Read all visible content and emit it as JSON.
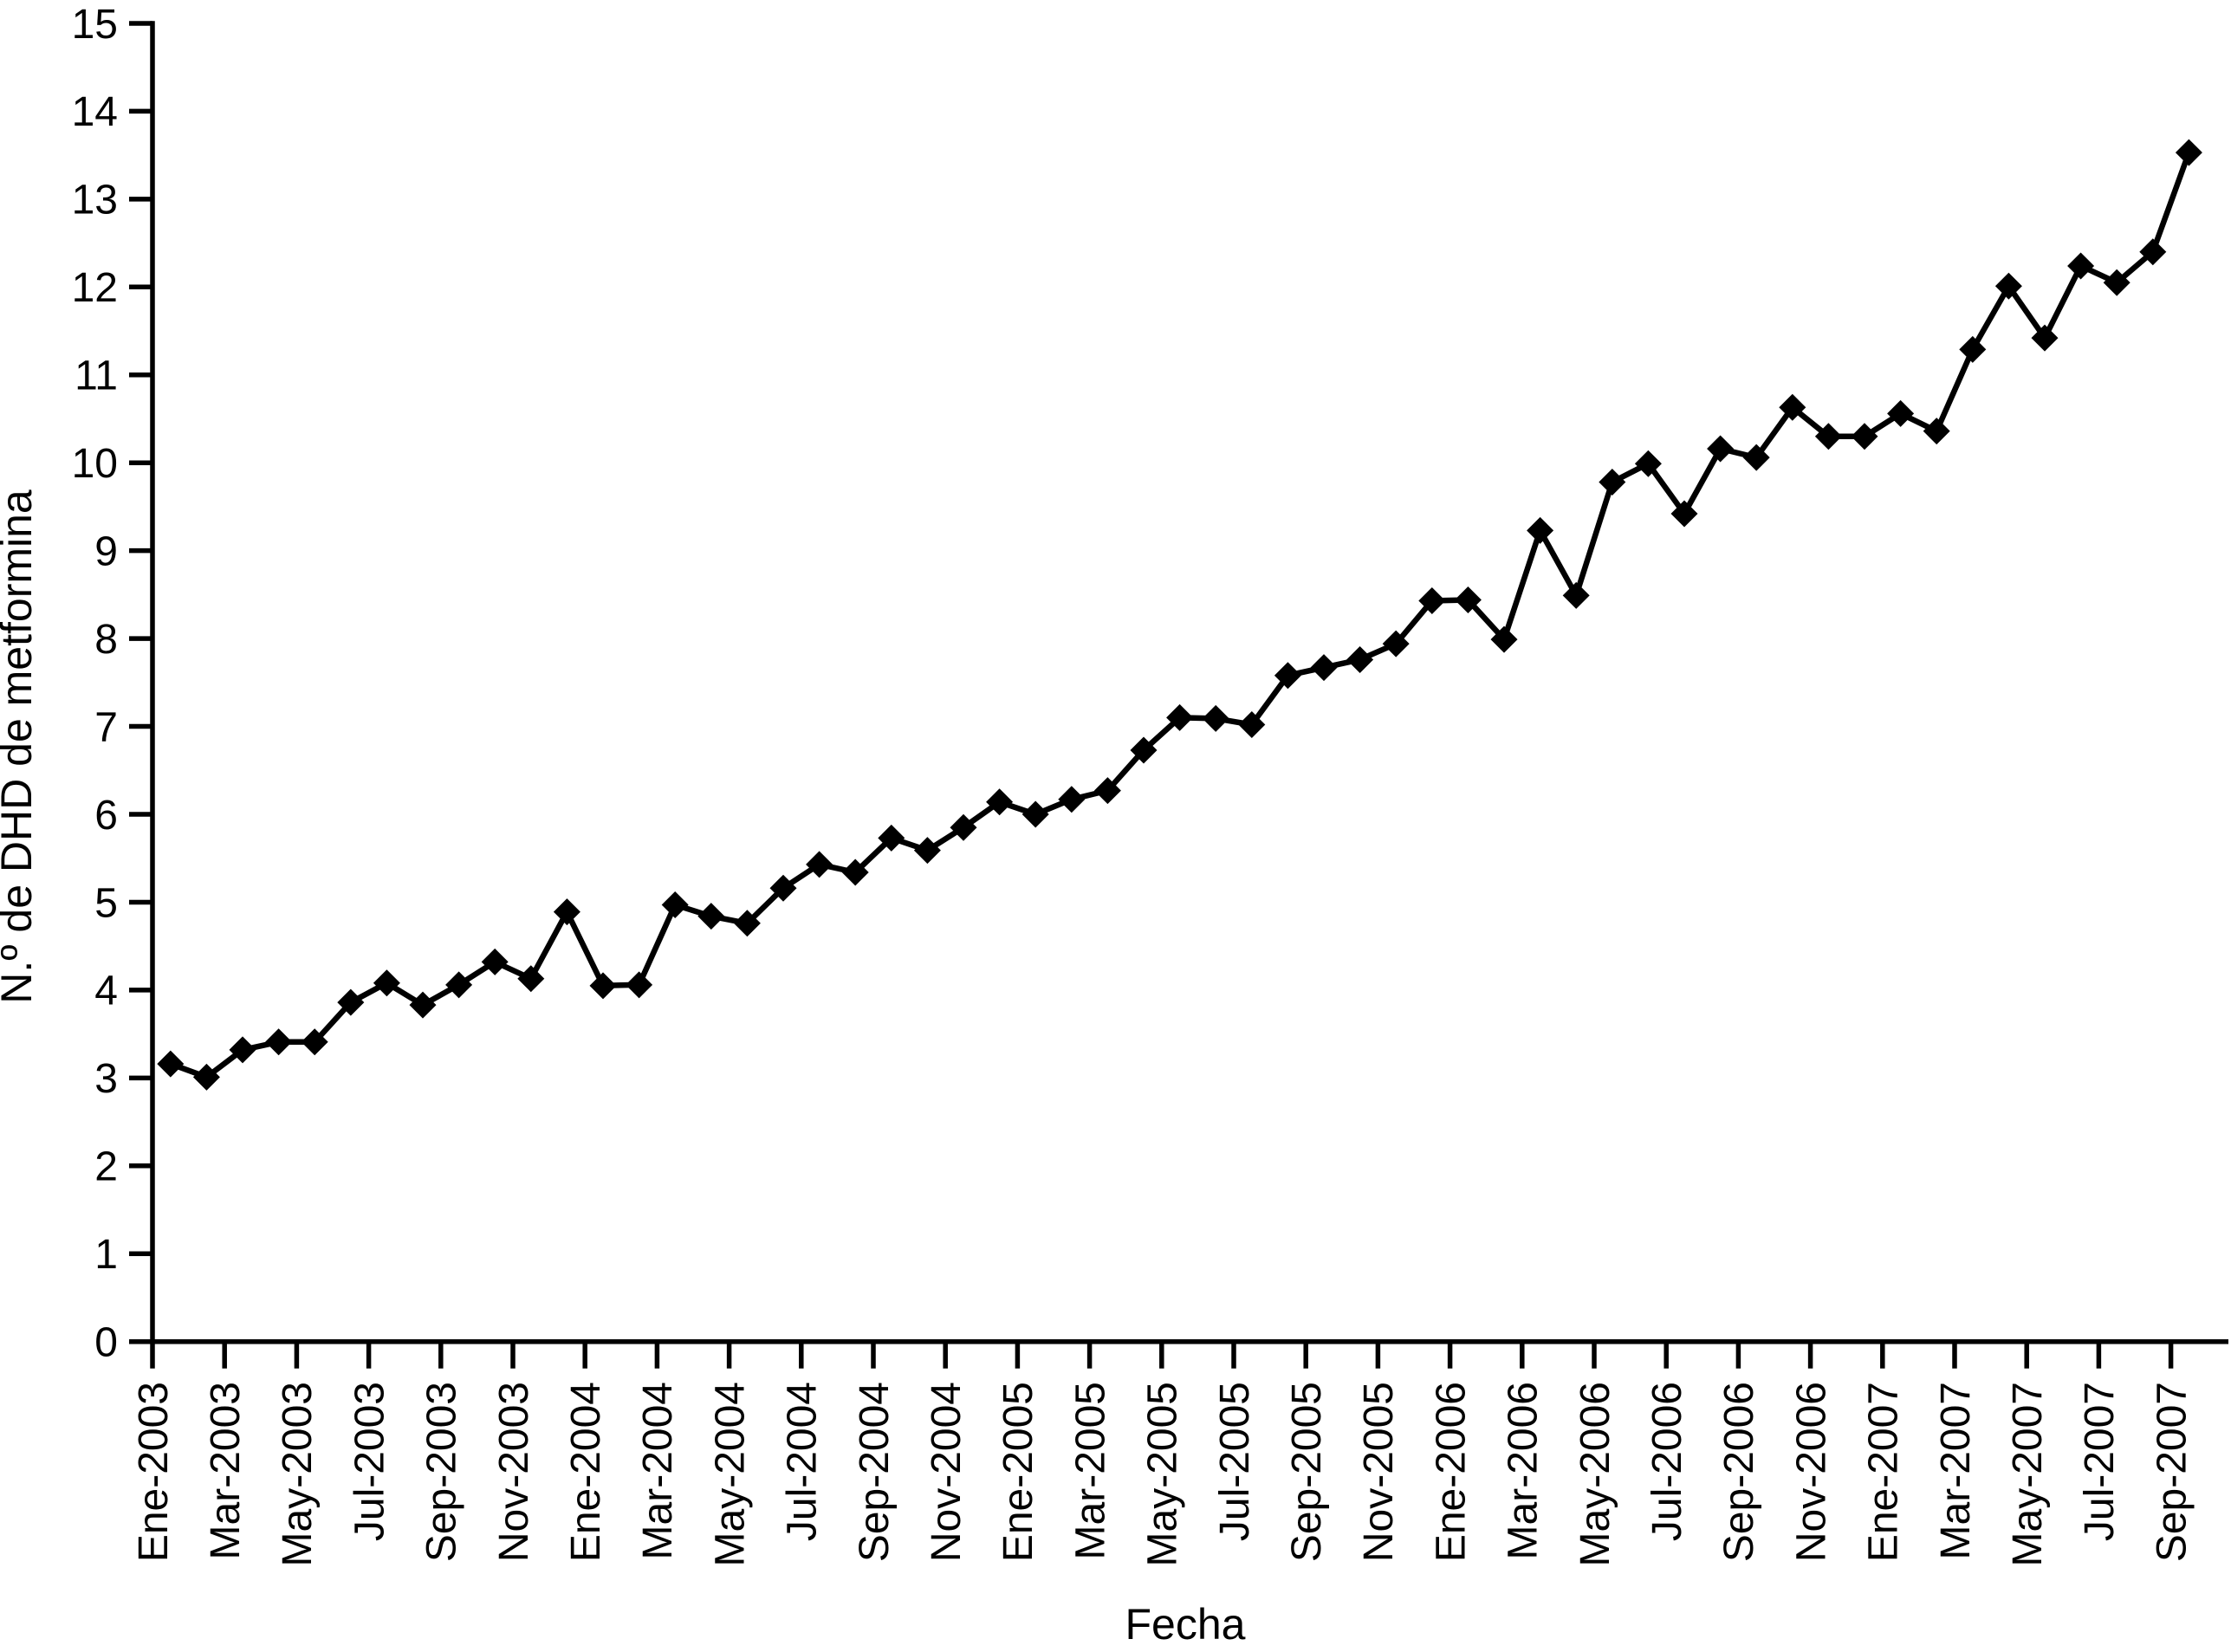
{
  "chart_data": {
    "type": "line",
    "title": "",
    "xlabel": "Fecha",
    "ylabel": "N.º de DHD de metformina",
    "legend": "none",
    "grid": "off",
    "marker": "diamond",
    "line_color": "#000000",
    "marker_color": "#000000",
    "axis_color": "#000000",
    "background": "#ffffff",
    "ylim": [
      0,
      15
    ],
    "y_tick_labels": [
      "0",
      "1",
      "2",
      "3",
      "4",
      "5",
      "6",
      "7",
      "8",
      "9",
      "10",
      "11",
      "12",
      "13",
      "14",
      "15"
    ],
    "x_tick_labels": [
      "Ene-2003",
      "Mar-2003",
      "May-2003",
      "Jul-2003",
      "Sep-2003",
      "Nov-2003",
      "Ene-2004",
      "Mar-2004",
      "May-2004",
      "Jul-2004",
      "Sep-2004",
      "Nov-2004",
      "Ene-2005",
      "Mar-2005",
      "May-2005",
      "Jul-2005",
      "Sep-2005",
      "Nov-2005",
      "Ene-2006",
      "Mar-2006",
      "May-2006",
      "Jul-2006",
      "Sep-2006",
      "Nov-2006",
      "Ene-2007",
      "Mar-2007",
      "May-2007",
      "Jul-2007",
      "Sep-2007"
    ],
    "categories": [
      "Ene-2003",
      "Feb-2003",
      "Mar-2003",
      "Abr-2003",
      "May-2003",
      "Jun-2003",
      "Jul-2003",
      "Ago-2003",
      "Sep-2003",
      "Oct-2003",
      "Nov-2003",
      "Dic-2003",
      "Ene-2004",
      "Feb-2004",
      "Mar-2004",
      "Abr-2004",
      "May-2004",
      "Jun-2004",
      "Jul-2004",
      "Ago-2004",
      "Sep-2004",
      "Oct-2004",
      "Nov-2004",
      "Dic-2004",
      "Ene-2005",
      "Feb-2005",
      "Mar-2005",
      "Abr-2005",
      "May-2005",
      "Jun-2005",
      "Jul-2005",
      "Ago-2005",
      "Sep-2005",
      "Oct-2005",
      "Nov-2005",
      "Dic-2005",
      "Ene-2006",
      "Feb-2006",
      "Mar-2006",
      "Abr-2006",
      "May-2006",
      "Jun-2006",
      "Jul-2006",
      "Ago-2006",
      "Sep-2006",
      "Oct-2006",
      "Nov-2006",
      "Dic-2006",
      "Ene-2007",
      "Feb-2007",
      "Mar-2007",
      "Abr-2007",
      "May-2007",
      "Jun-2007",
      "Jul-2007",
      "Ago-2007",
      "Sep-2007"
    ],
    "values": [
      3.16,
      3.01,
      3.32,
      3.41,
      3.41,
      3.86,
      4.08,
      3.83,
      4.06,
      4.32,
      4.13,
      4.89,
      4.05,
      4.06,
      4.97,
      4.84,
      4.76,
      5.16,
      5.43,
      5.34,
      5.73,
      5.59,
      5.85,
      6.14,
      6.0,
      6.17,
      6.27,
      6.73,
      7.1,
      7.09,
      7.02,
      7.58,
      7.67,
      7.76,
      7.94,
      8.43,
      8.44,
      7.99,
      9.23,
      8.49,
      9.78,
      9.99,
      9.42,
      10.16,
      10.06,
      10.63,
      10.3,
      10.3,
      10.56,
      10.36,
      11.29,
      12.01,
      11.42,
      12.24,
      12.05,
      12.4,
      13.53
    ]
  }
}
